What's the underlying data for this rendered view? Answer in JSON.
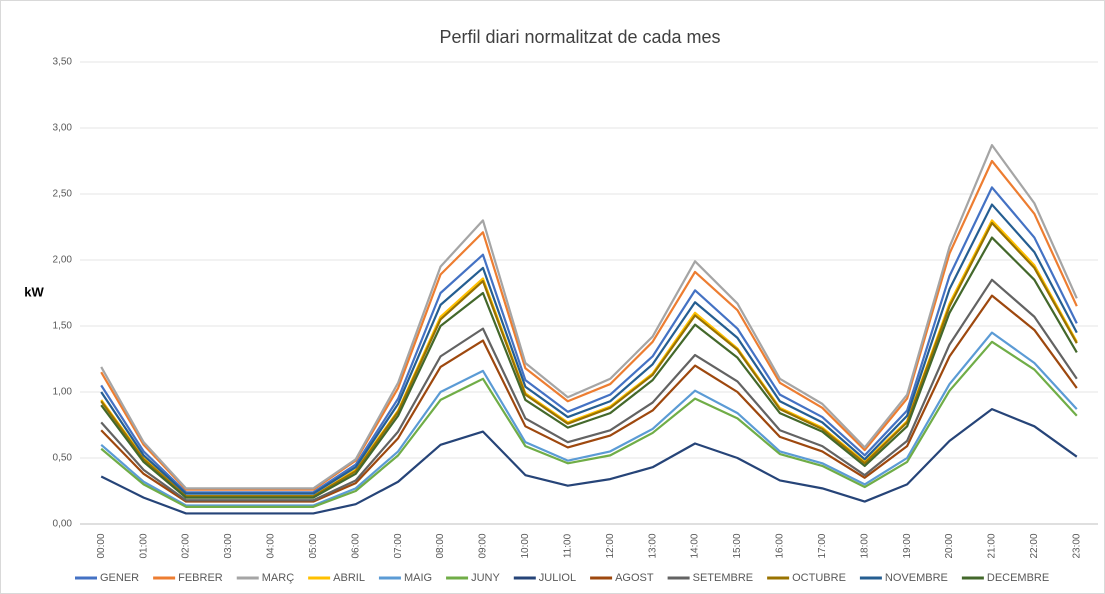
{
  "chart_data": {
    "type": "line",
    "title": "Perfil diari normalitzat de cada mes",
    "y_label": "kW",
    "categories": [
      "00:00",
      "01:00",
      "02:00",
      "03:00",
      "04:00",
      "05:00",
      "06:00",
      "07:00",
      "08:00",
      "09:00",
      "10:00",
      "11:00",
      "12:00",
      "13:00",
      "14:00",
      "15:00",
      "16:00",
      "17:00",
      "18:00",
      "19:00",
      "20:00",
      "21:00",
      "22:00",
      "23:00"
    ],
    "ylim": [
      0,
      3.5
    ],
    "yticks": [
      {
        "value": 0,
        "label": "0,00"
      },
      {
        "value": 0.5,
        "label": "0,50"
      },
      {
        "value": 1,
        "label": "1,00"
      },
      {
        "value": 1.5,
        "label": "1,50"
      },
      {
        "value": 2,
        "label": "2,00"
      },
      {
        "value": 2.5,
        "label": "2,50"
      },
      {
        "value": 3,
        "label": "3,00"
      },
      {
        "value": 3.5,
        "label": "3,50"
      }
    ],
    "grid": true,
    "legend": "bottom",
    "series": [
      {
        "name": "GENER",
        "color": "#4472c4",
        "values": [
          1.05,
          0.55,
          0.24,
          0.24,
          0.24,
          0.24,
          0.45,
          0.95,
          1.75,
          2.04,
          1.09,
          0.85,
          0.98,
          1.27,
          1.77,
          1.48,
          0.98,
          0.81,
          0.52,
          0.86,
          1.88,
          2.55,
          2.17,
          1.52
        ]
      },
      {
        "name": "FEBRER",
        "color": "#ed7d31",
        "values": [
          1.15,
          0.6,
          0.26,
          0.26,
          0.26,
          0.26,
          0.48,
          1.03,
          1.89,
          2.21,
          1.18,
          0.93,
          1.06,
          1.38,
          1.91,
          1.62,
          1.07,
          0.88,
          0.56,
          0.95,
          2.05,
          2.75,
          2.35,
          1.65
        ]
      },
      {
        "name": "MARÇ",
        "color": "#a5a5a5",
        "values": [
          1.19,
          0.62,
          0.27,
          0.27,
          0.27,
          0.27,
          0.49,
          1.07,
          1.95,
          2.3,
          1.22,
          0.96,
          1.1,
          1.42,
          1.99,
          1.67,
          1.1,
          0.91,
          0.58,
          0.98,
          2.1,
          2.87,
          2.43,
          1.71
        ]
      },
      {
        "name": "ABRIL",
        "color": "#ffc000",
        "values": [
          0.94,
          0.5,
          0.21,
          0.21,
          0.21,
          0.21,
          0.41,
          0.86,
          1.57,
          1.86,
          0.99,
          0.77,
          0.89,
          1.14,
          1.6,
          1.33,
          0.88,
          0.73,
          0.47,
          0.78,
          1.67,
          2.3,
          1.96,
          1.38
        ]
      },
      {
        "name": "MAIG",
        "color": "#5b9bd5",
        "values": [
          0.6,
          0.32,
          0.14,
          0.14,
          0.14,
          0.14,
          0.27,
          0.55,
          1.0,
          1.16,
          0.62,
          0.48,
          0.55,
          0.72,
          1.01,
          0.84,
          0.55,
          0.46,
          0.3,
          0.5,
          1.06,
          1.45,
          1.22,
          0.87
        ]
      },
      {
        "name": "JUNY",
        "color": "#70ad47",
        "values": [
          0.57,
          0.3,
          0.13,
          0.13,
          0.13,
          0.13,
          0.25,
          0.52,
          0.94,
          1.1,
          0.59,
          0.46,
          0.52,
          0.69,
          0.95,
          0.8,
          0.53,
          0.44,
          0.28,
          0.47,
          1.01,
          1.38,
          1.17,
          0.82
        ]
      },
      {
        "name": "JULIOL",
        "color": "#264478",
        "values": [
          0.36,
          0.2,
          0.08,
          0.08,
          0.08,
          0.08,
          0.15,
          0.32,
          0.6,
          0.7,
          0.37,
          0.29,
          0.34,
          0.43,
          0.61,
          0.5,
          0.33,
          0.27,
          0.17,
          0.3,
          0.63,
          0.87,
          0.74,
          0.51
        ]
      },
      {
        "name": "AGOST",
        "color": "#9e480e",
        "values": [
          0.71,
          0.38,
          0.17,
          0.17,
          0.17,
          0.17,
          0.31,
          0.65,
          1.19,
          1.39,
          0.74,
          0.58,
          0.67,
          0.86,
          1.2,
          1.0,
          0.66,
          0.55,
          0.35,
          0.59,
          1.27,
          1.73,
          1.47,
          1.03
        ]
      },
      {
        "name": "SETEMBRE",
        "color": "#636363",
        "values": [
          0.77,
          0.41,
          0.18,
          0.18,
          0.18,
          0.18,
          0.33,
          0.7,
          1.27,
          1.48,
          0.8,
          0.62,
          0.71,
          0.92,
          1.28,
          1.08,
          0.71,
          0.59,
          0.37,
          0.63,
          1.36,
          1.85,
          1.57,
          1.1
        ]
      },
      {
        "name": "OCTUBRE",
        "color": "#997300",
        "values": [
          0.93,
          0.49,
          0.21,
          0.21,
          0.21,
          0.21,
          0.4,
          0.85,
          1.55,
          1.84,
          0.98,
          0.76,
          0.88,
          1.13,
          1.58,
          1.32,
          0.87,
          0.72,
          0.46,
          0.77,
          1.65,
          2.28,
          1.94,
          1.37
        ]
      },
      {
        "name": "NOVEMBRE",
        "color": "#255e91",
        "values": [
          1.0,
          0.52,
          0.23,
          0.23,
          0.23,
          0.23,
          0.43,
          0.91,
          1.66,
          1.94,
          1.04,
          0.81,
          0.93,
          1.21,
          1.68,
          1.41,
          0.93,
          0.77,
          0.49,
          0.82,
          1.78,
          2.42,
          2.06,
          1.45
        ]
      },
      {
        "name": "DECEMBRE",
        "color": "#43682b",
        "values": [
          0.9,
          0.47,
          0.2,
          0.2,
          0.2,
          0.2,
          0.38,
          0.82,
          1.5,
          1.75,
          0.94,
          0.73,
          0.84,
          1.09,
          1.51,
          1.26,
          0.84,
          0.7,
          0.44,
          0.74,
          1.6,
          2.17,
          1.85,
          1.3
        ]
      }
    ]
  }
}
